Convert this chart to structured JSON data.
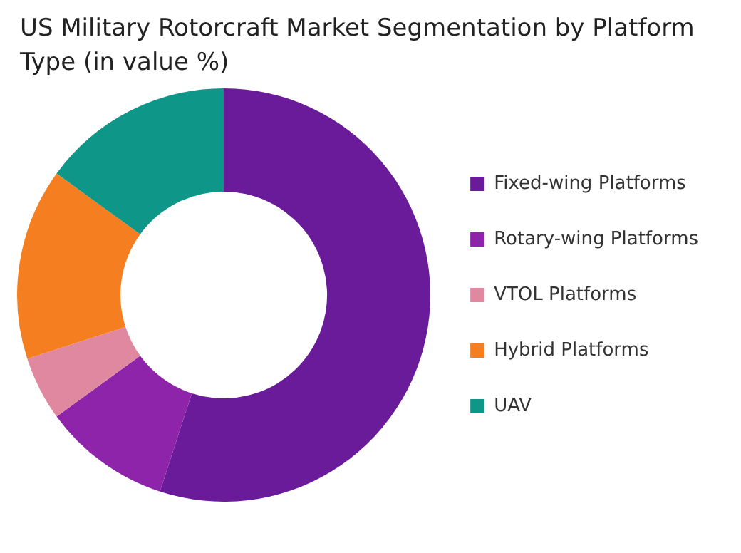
{
  "chart_data": {
    "type": "donut",
    "title": "US Military Rotorcraft Market Segmentation by Platform Type (in value %)",
    "categories": [
      "Fixed-wing Platforms",
      "Rotary-wing Platforms",
      "VTOL Platforms",
      "Hybrid Platforms",
      "UAV"
    ],
    "values": [
      55,
      10,
      5,
      15,
      15
    ],
    "colors": [
      "#6a1b9a",
      "#8e24aa",
      "#e088a0",
      "#f57f20",
      "#0e9688"
    ],
    "legend": "right"
  }
}
